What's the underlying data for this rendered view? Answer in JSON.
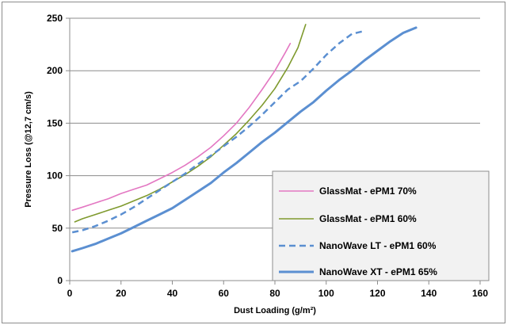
{
  "chart_data": {
    "type": "line",
    "xlabel": "Dust Loading (g/m²)",
    "ylabel": "Pressure Loss (@12,7 cm/s)",
    "xlim": [
      0,
      160
    ],
    "ylim": [
      0,
      250
    ],
    "xticks": [
      0,
      20,
      40,
      60,
      80,
      100,
      120,
      140,
      160
    ],
    "yticks": [
      0,
      50,
      100,
      150,
      200,
      250
    ],
    "grid": "horizontal",
    "legend_position": "bottom-right",
    "series": [
      {
        "name": "GlassMat - ePM1 70%",
        "color": "#e377c2",
        "style": "solid",
        "points": [
          [
            1,
            67
          ],
          [
            5,
            70
          ],
          [
            10,
            74
          ],
          [
            15,
            78
          ],
          [
            20,
            83
          ],
          [
            25,
            87
          ],
          [
            30,
            91
          ],
          [
            35,
            97
          ],
          [
            40,
            103
          ],
          [
            45,
            110
          ],
          [
            50,
            118
          ],
          [
            55,
            127
          ],
          [
            60,
            138
          ],
          [
            65,
            150
          ],
          [
            70,
            165
          ],
          [
            75,
            182
          ],
          [
            80,
            200
          ],
          [
            84,
            217
          ],
          [
            86,
            226
          ]
        ]
      },
      {
        "name": "GlassMat - ePM1 60%",
        "color": "#7f9a2e",
        "style": "solid",
        "points": [
          [
            2,
            56
          ],
          [
            5,
            59
          ],
          [
            10,
            63
          ],
          [
            15,
            67
          ],
          [
            20,
            71
          ],
          [
            25,
            76
          ],
          [
            30,
            81
          ],
          [
            35,
            87
          ],
          [
            40,
            94
          ],
          [
            45,
            101
          ],
          [
            50,
            109
          ],
          [
            55,
            118
          ],
          [
            60,
            129
          ],
          [
            65,
            140
          ],
          [
            70,
            153
          ],
          [
            75,
            167
          ],
          [
            80,
            183
          ],
          [
            85,
            203
          ],
          [
            89,
            222
          ],
          [
            92,
            244
          ]
        ]
      },
      {
        "name": "NanoWave LT - ePM1 60%",
        "color": "#5b8fd1",
        "style": "dashed",
        "points": [
          [
            1,
            46
          ],
          [
            5,
            48
          ],
          [
            10,
            52
          ],
          [
            15,
            57
          ],
          [
            20,
            63
          ],
          [
            25,
            70
          ],
          [
            30,
            78
          ],
          [
            35,
            86
          ],
          [
            40,
            94
          ],
          [
            45,
            102
          ],
          [
            50,
            111
          ],
          [
            55,
            119
          ],
          [
            60,
            128
          ],
          [
            65,
            137
          ],
          [
            70,
            147
          ],
          [
            75,
            158
          ],
          [
            80,
            170
          ],
          [
            85,
            182
          ],
          [
            90,
            190
          ],
          [
            95,
            202
          ],
          [
            100,
            215
          ],
          [
            105,
            226
          ],
          [
            110,
            235
          ],
          [
            115,
            238
          ]
        ]
      },
      {
        "name": "NanoWave XT - ePM1 65%",
        "color": "#5b8fd1",
        "style": "solid",
        "points": [
          [
            1,
            28
          ],
          [
            5,
            31
          ],
          [
            10,
            35
          ],
          [
            15,
            40
          ],
          [
            20,
            45
          ],
          [
            25,
            51
          ],
          [
            30,
            57
          ],
          [
            35,
            63
          ],
          [
            40,
            69
          ],
          [
            45,
            77
          ],
          [
            50,
            85
          ],
          [
            55,
            93
          ],
          [
            60,
            103
          ],
          [
            65,
            112
          ],
          [
            70,
            122
          ],
          [
            75,
            132
          ],
          [
            80,
            141
          ],
          [
            85,
            151
          ],
          [
            90,
            161
          ],
          [
            95,
            170
          ],
          [
            100,
            181
          ],
          [
            105,
            191
          ],
          [
            110,
            200
          ],
          [
            115,
            210
          ],
          [
            120,
            219
          ],
          [
            125,
            228
          ],
          [
            130,
            236
          ],
          [
            135,
            241
          ]
        ]
      }
    ]
  }
}
